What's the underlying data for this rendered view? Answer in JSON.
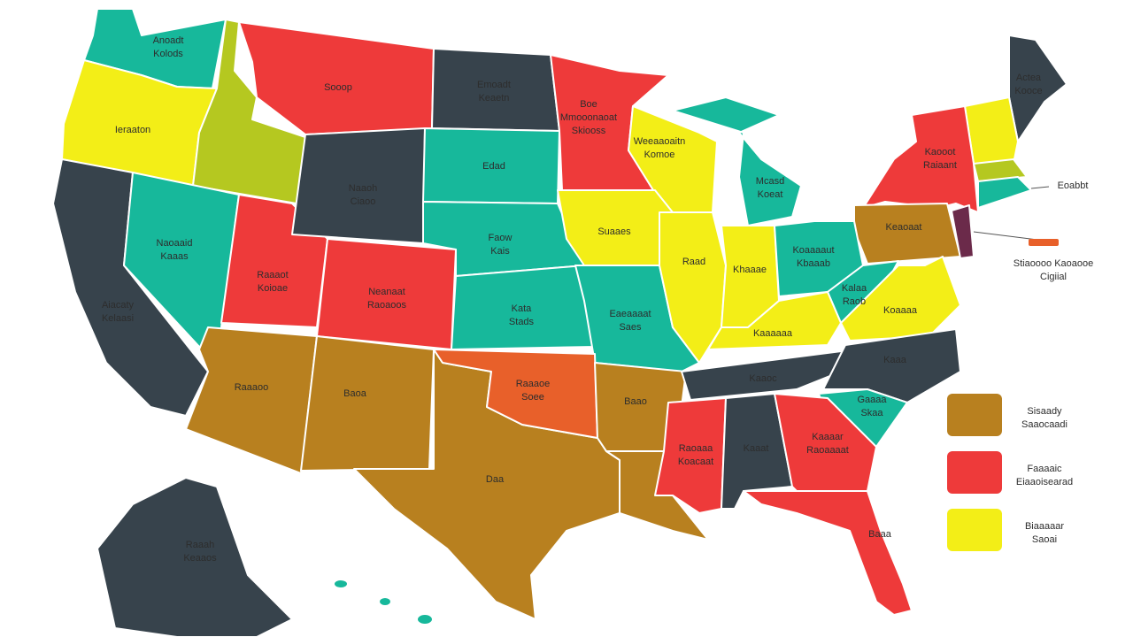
{
  "labels": [
    [
      "Anoadt",
      "Kolods"
    ],
    [
      "Ieraaton"
    ],
    [
      "Sooop"
    ],
    [
      "Emoadt",
      "Keaetn"
    ],
    [
      "Boe",
      "Mmooonaoat",
      "Skiooss"
    ],
    [
      "Weeaaoaitn",
      "Komoe"
    ],
    [
      "Mcasd",
      "Koeat"
    ],
    [
      "Actea",
      "Kooce"
    ],
    [
      "Kaooot",
      "Raiaant"
    ],
    [
      "Eoabbt"
    ],
    [
      "Keaoaat"
    ],
    [
      "Stiaoooo Kaoaooe",
      "Cigiial"
    ],
    [
      "Aiacaty",
      "Kelaasi"
    ],
    [
      "Naoaaid",
      "Kaaas"
    ],
    [
      "Raaaot",
      "Koioae"
    ],
    [
      "Naaoh",
      "Ciaoo"
    ],
    [
      "Edad"
    ],
    [
      "Neanaat",
      "Raoaoos"
    ],
    [
      "Faow",
      "Kais"
    ],
    [
      "Kata",
      "Stads"
    ],
    [
      "Suaaes"
    ],
    [
      "Eaeaaaat",
      "Saes"
    ],
    [
      "Raad"
    ],
    [
      "Khaaae"
    ],
    [
      "Koaaaaut",
      "Kbaaab"
    ],
    [
      "Kalaa",
      "Raob"
    ],
    [
      "Koaaaa"
    ],
    [
      "Kaaaaaa"
    ],
    [
      "Raaaoo"
    ],
    [
      "Baoa"
    ],
    [
      "Raaaoe",
      "Soee"
    ],
    [
      "Baao"
    ],
    [
      "Kaaoc"
    ],
    [
      "Kaaa"
    ],
    [
      "Gaaaa",
      "Skaa"
    ],
    [
      "Daa"
    ],
    [
      "Raoaaa",
      "Koacaat"
    ],
    [
      "Kaaat"
    ],
    [
      "Kaaaar",
      "Raoaaaat"
    ],
    [
      "Baaa"
    ],
    [
      "Raaah",
      "Keaaos"
    ]
  ],
  "legend": [
    [
      "Sisaady",
      "Saaocaadi"
    ],
    [
      "Faaaaic",
      "Eiaaoisearad"
    ],
    [
      "Biaaaaar",
      "Saoai"
    ]
  ]
}
